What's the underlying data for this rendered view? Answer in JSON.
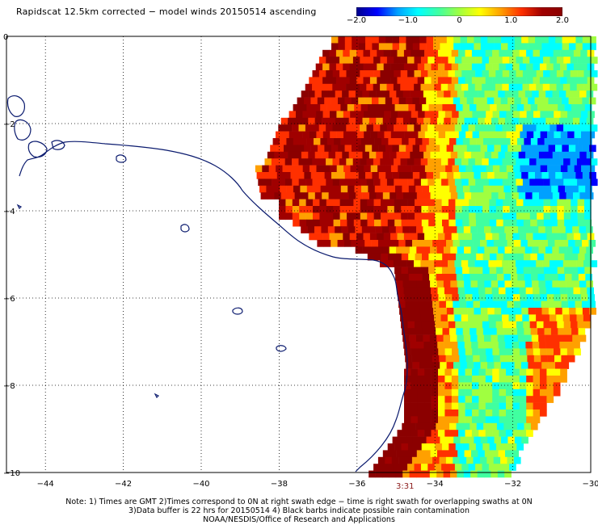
{
  "title": "Rapidscat 12.5km corrected − model winds 20150514 ascending",
  "colorbar": {
    "labels": [
      "−2.0",
      "−1.0",
      "0",
      "1.0",
      "2.0"
    ],
    "values": [
      -2.0,
      -1.0,
      0,
      1.0,
      2.0
    ],
    "colors": [
      "#00008b",
      "#0000ff",
      "#00a0ff",
      "#00ffff",
      "#40ffa0",
      "#a0ff40",
      "#ffff00",
      "#ffa000",
      "#ff3000",
      "#a00000",
      "#8b0000"
    ]
  },
  "x_axis": {
    "ticks": [
      -44,
      -42,
      -40,
      -38,
      -36,
      -34,
      -32,
      -30
    ],
    "labels": [
      "−44",
      "−42",
      "−40",
      "−38",
      "−36",
      "−34",
      "−32",
      "−30"
    ]
  },
  "y_axis": {
    "ticks": [
      0,
      -2,
      -4,
      -6,
      -8,
      -10
    ],
    "labels": [
      "0",
      "−2",
      "−4",
      "−6",
      "−8",
      "−10"
    ]
  },
  "timestamp": "3:31",
  "notes": [
    "Note: 1) Times are GMT 2)Times correspond to 0N at right swath edge − time is right swath for overlapping swaths at 0N",
    "3)Data buffer is 22 hrs for 20150514 4) Black barbs indicate possible rain contamination",
    "NOAA/NESDIS/Office of Research and Applications"
  ],
  "colors": {
    "coastline": "#0a1a6e",
    "grid": "#000000"
  }
}
